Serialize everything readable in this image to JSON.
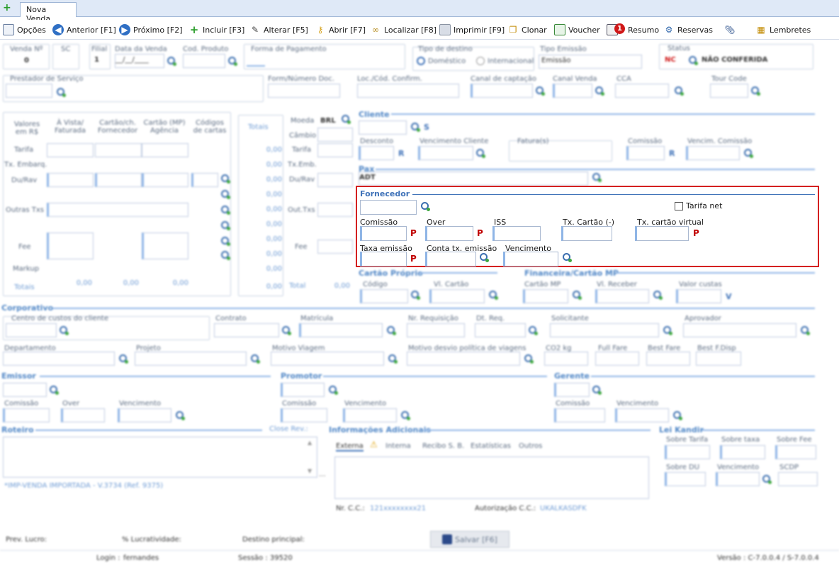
{
  "tab": {
    "label": "Nova Venda"
  },
  "toolbar": {
    "items": [
      {
        "label": "Opções",
        "icon": "notepad-icon"
      },
      {
        "label": "Anterior [F1]",
        "icon": "arrow-left-circle-icon"
      },
      {
        "label": "Próximo [F2]",
        "icon": "arrow-right-circle-icon"
      },
      {
        "label": "Incluir [F3]",
        "icon": "plus-icon"
      },
      {
        "label": "Alterar [F5]",
        "icon": "pencil-icon"
      },
      {
        "label": "Abrir [F7]",
        "icon": "key-icon"
      },
      {
        "label": "Localizar [F8]",
        "icon": "binoculars-icon"
      },
      {
        "label": "Imprimir [F9]",
        "icon": "printer-icon"
      },
      {
        "label": "Clonar",
        "icon": "clone-icon"
      },
      {
        "label": "Voucher",
        "icon": "voucher-icon"
      },
      {
        "label": "Resumo",
        "icon": "summary-icon",
        "badge": "1"
      },
      {
        "label": "Reservas",
        "icon": "reservations-icon"
      },
      {
        "label": "",
        "icon": "paperclip-icon"
      },
      {
        "label": "Lembretes",
        "icon": "reminders-icon"
      }
    ]
  },
  "header": {
    "venda_nr": "Venda Nº",
    "sc": "SC",
    "filial": "Filial",
    "filial_value": "1",
    "data_venda": "Data da Venda",
    "data_venda_value": "__/__/____",
    "cod_produto": "Cod. Produto",
    "forma_pagamento": "Forma de Pagamento",
    "tipo_destino": "Tipo de destino",
    "domestico": "Doméstico",
    "internacional": "Internacional",
    "tipo_emissao": "Tipo Emissão",
    "tipo_emissao_value": "Emissão",
    "status": "Status",
    "status_code": "NC",
    "status_value": "NÃO CONFERIDA",
    "prestador": "Prestador de Serviço",
    "form_numero_doc": "Form/Número Doc.",
    "loc_cod": "Loc./Cód. Confirm.",
    "canal_captacao": "Canal de captação",
    "canal_venda": "Canal Venda",
    "cca": "CCA",
    "tour_code": "Tour Code"
  },
  "values_table": {
    "headers": [
      "Valores em R$",
      "À Vista/ Faturada",
      "Cartão/ch. Fornecedor",
      "Cartão (MP) Agência",
      "Códigos de cartas"
    ],
    "rows": [
      "Tarifa",
      "Tx. Embarq.",
      "Du/Rav",
      "Outras Txs",
      "Fee",
      "Markup"
    ],
    "totais_label": "Totais",
    "totais_values": [
      "0,00",
      "0,00",
      "0,00"
    ],
    "totais_col_label": "Totais",
    "totals": [
      "0,00",
      "0,00",
      "0,00",
      "0,00",
      "0,00",
      "0,00",
      "0,00",
      "0,00",
      "0,00",
      "0,00",
      "0,00"
    ],
    "moeda_label": "Moeda",
    "moeda_value": "BRL",
    "cambio": "Câmbio",
    "right_rows": [
      "Tarifa",
      "Tx.Emb.",
      "Du/Rav",
      "Out.Txs",
      "Fee"
    ],
    "total_label": "Total",
    "total_value": "0,00"
  },
  "cliente": {
    "title": "Cliente",
    "s": "S",
    "desconto": "Desconto",
    "r1": "R",
    "vencimento_cliente": "Vencimento Cliente",
    "faturas": "Fatura(s)",
    "comissao": "Comissão",
    "r2": "R",
    "venc_comissao": "Vencim. Comissão"
  },
  "pax": {
    "title": "Pax",
    "value": "ADT"
  },
  "fornecedor": {
    "title": "Fornecedor",
    "tarifa_net": "Tarifa net",
    "comissao": "Comissão",
    "over": "Over",
    "iss": "ISS",
    "tx_cartao": "Tx. Cartão (-)",
    "tx_cartao_virtual": "Tx. cartão virtual",
    "taxa_emissao": "Taxa emissão",
    "conta_tx_emissao": "Conta tx. emissão",
    "vencimento": "Vencimento",
    "p": "P"
  },
  "cartao_proprio": {
    "title": "Cartão Próprio",
    "codigo": "Código",
    "vl_cartao": "Vl. Cartão"
  },
  "financeira": {
    "title": "Financeira/Cartão MP",
    "cartao_mp": "Cartão MP",
    "vl_receber": "Vl. Receber",
    "valor_custas": "Valor custas",
    "v": "V"
  },
  "corporativo": {
    "title": "Corporativo",
    "centro_custos": "Centro de custos do cliente",
    "contrato": "Contrato",
    "matricula": "Matrícula",
    "nr_requisicao": "Nr. Requisição",
    "dt_req": "Dt. Req.",
    "solicitante": "Solicitante",
    "aprovador": "Aprovador",
    "departamento": "Departamento",
    "projeto": "Projeto",
    "motivo_viagem": "Motivo Viagem",
    "motivo_desvio": "Motivo desvio política de viagens",
    "co2": "CO2 kg",
    "full_fare": "Full Fare",
    "best_fare": "Best Fare",
    "best_fdisp": "Best F.Disp"
  },
  "emissor": {
    "title": "Emissor",
    "comissao": "Comissão",
    "over": "Over",
    "vencimento": "Vencimento"
  },
  "promotor": {
    "title": "Promotor",
    "comissao": "Comissão",
    "vencimento": "Vencimento"
  },
  "gerente": {
    "title": "Gerente",
    "comissao": "Comissão",
    "vencimento": "Vencimento"
  },
  "roteiro": {
    "title": "Roteiro",
    "close_link": "Close Rev.:",
    "note": "*IMP-VENDA IMPORTADA - V.3734 (Ref. 9375)"
  },
  "info_adicionais": {
    "title": "Informações Adicionais",
    "tabs": [
      "Externa",
      "Interna",
      "Recibo S. B.",
      "Estatísticas",
      "Outros"
    ],
    "nr_cc": "Nr. C.C.:",
    "nr_cc_value": "121xxxxxxxx21",
    "autorizacao": "Autorização C.C.:",
    "autorizacao_value": "UKALKASDFK"
  },
  "lei_kandir": {
    "title": "Lei Kandir",
    "sobre_tarifa": "Sobre Tarifa",
    "sobre_taxa": "Sobre taxa",
    "sobre_fee": "Sobre Fee",
    "sobre_du": "Sobre DU",
    "vencimento": "Vencimento",
    "scdp": "SCDP"
  },
  "footer": {
    "prev_lucro": "Prev. Lucro:",
    "lucratividade": "% Lucratividade:",
    "destino": "Destino principal:",
    "save": "Salvar [F6]",
    "login": "Login :",
    "login_value": "fernandes",
    "sessao": "Sessão : 39520",
    "versao": "Versão : C-7.0.0.4 / S-7.0.0.4"
  },
  "colors": {
    "accent": "#3f72b8",
    "highlight_border": "#d42020",
    "required_mark": "#c00000"
  }
}
